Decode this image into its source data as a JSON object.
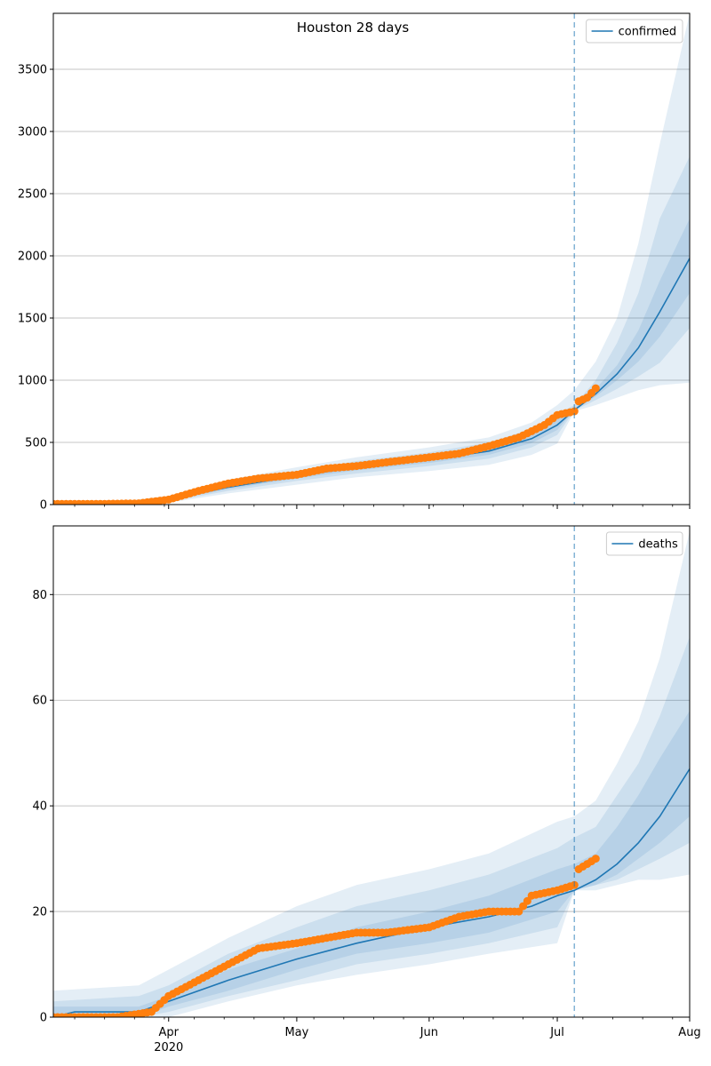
{
  "figure": {
    "title": "Houston 28 days"
  },
  "chart_data": [
    {
      "type": "line",
      "title": "Houston 28 days",
      "xlabel": "",
      "ylabel": "",
      "x_range": [
        "2020-03-05",
        "2020-08-01"
      ],
      "ylim": [
        0,
        3950
      ],
      "yticks": [
        0,
        500,
        1000,
        1500,
        2000,
        2500,
        3000,
        3500
      ],
      "xticks": [
        {
          "date": "2020-04-01",
          "label": "Apr",
          "sublabel": "2020"
        },
        {
          "date": "2020-05-01",
          "label": "May",
          "sublabel": ""
        },
        {
          "date": "2020-06-01",
          "label": "Jun",
          "sublabel": ""
        },
        {
          "date": "2020-07-01",
          "label": "Jul",
          "sublabel": ""
        },
        {
          "date": "2020-08-01",
          "label": "Aug",
          "sublabel": ""
        }
      ],
      "grid": "y",
      "legend": {
        "placement": "top-right",
        "entries": [
          "confirmed"
        ]
      },
      "forecast_start": "2020-07-05",
      "series": [
        {
          "name": "confirmed",
          "kind": "model-median",
          "color": "#1f77b4",
          "x": [
            "2020-03-05",
            "2020-03-20",
            "2020-04-01",
            "2020-04-15",
            "2020-05-01",
            "2020-05-15",
            "2020-06-01",
            "2020-06-15",
            "2020-06-25",
            "2020-07-01",
            "2020-07-05",
            "2020-07-10",
            "2020-07-15",
            "2020-07-20",
            "2020-07-25",
            "2020-08-01"
          ],
          "values": [
            0,
            5,
            40,
            140,
            230,
            300,
            360,
            430,
            530,
            640,
            760,
            890,
            1050,
            1260,
            1550,
            1980
          ]
        },
        {
          "name": "",
          "kind": "observed",
          "color": "#ff7f0e",
          "x": [
            "2020-03-05",
            "2020-03-15",
            "2020-03-25",
            "2020-04-01",
            "2020-04-08",
            "2020-04-15",
            "2020-04-22",
            "2020-05-01",
            "2020-05-08",
            "2020-05-15",
            "2020-05-22",
            "2020-06-01",
            "2020-06-08",
            "2020-06-15",
            "2020-06-22",
            "2020-06-28",
            "2020-07-01",
            "2020-07-05",
            "2020-07-06",
            "2020-07-08",
            "2020-07-10"
          ],
          "values": [
            5,
            5,
            10,
            40,
            110,
            170,
            210,
            240,
            290,
            310,
            340,
            380,
            410,
            470,
            540,
            640,
            720,
            750,
            830,
            860,
            935
          ]
        }
      ],
      "bands": [
        {
          "level": "outer",
          "x": [
            "2020-03-05",
            "2020-03-20",
            "2020-04-01",
            "2020-04-15",
            "2020-05-01",
            "2020-05-15",
            "2020-06-01",
            "2020-06-15",
            "2020-06-25",
            "2020-07-01",
            "2020-07-05",
            "2020-07-10",
            "2020-07-15",
            "2020-07-20",
            "2020-07-25",
            "2020-08-01"
          ],
          "low": [
            0,
            0,
            15,
            90,
            160,
            220,
            270,
            320,
            400,
            490,
            750,
            800,
            860,
            920,
            960,
            980
          ],
          "high": [
            10,
            20,
            70,
            200,
            300,
            380,
            460,
            540,
            660,
            800,
            920,
            1150,
            1500,
            2100,
            2900,
            3950
          ]
        },
        {
          "level": "middle",
          "x": [
            "2020-03-05",
            "2020-03-20",
            "2020-04-01",
            "2020-04-15",
            "2020-05-01",
            "2020-05-15",
            "2020-06-01",
            "2020-06-15",
            "2020-06-25",
            "2020-07-01",
            "2020-07-05",
            "2020-07-10",
            "2020-07-15",
            "2020-07-20",
            "2020-07-25",
            "2020-08-01"
          ],
          "low": [
            0,
            2,
            25,
            110,
            190,
            250,
            310,
            370,
            460,
            560,
            755,
            840,
            930,
            1030,
            1140,
            1420
          ],
          "high": [
            5,
            12,
            55,
            170,
            270,
            350,
            420,
            500,
            610,
            730,
            800,
            1000,
            1300,
            1700,
            2300,
            2800
          ]
        },
        {
          "level": "inner",
          "x": [
            "2020-03-05",
            "2020-03-20",
            "2020-04-01",
            "2020-04-15",
            "2020-05-01",
            "2020-05-15",
            "2020-06-01",
            "2020-06-15",
            "2020-06-25",
            "2020-07-01",
            "2020-07-05",
            "2020-07-10",
            "2020-07-15",
            "2020-07-20",
            "2020-07-25",
            "2020-08-01"
          ],
          "low": [
            0,
            3,
            32,
            125,
            210,
            275,
            335,
            400,
            495,
            600,
            760,
            870,
            1000,
            1150,
            1350,
            1700
          ],
          "high": [
            3,
            8,
            48,
            155,
            250,
            325,
            390,
            465,
            570,
            685,
            770,
            930,
            1120,
            1400,
            1800,
            2300
          ]
        }
      ]
    },
    {
      "type": "line",
      "title": "",
      "xlabel": "",
      "ylabel": "",
      "x_range": [
        "2020-03-05",
        "2020-08-01"
      ],
      "ylim": [
        0,
        93
      ],
      "yticks": [
        0,
        20,
        40,
        60,
        80
      ],
      "xticks": [
        {
          "date": "2020-04-01",
          "label": "Apr",
          "sublabel": "2020"
        },
        {
          "date": "2020-05-01",
          "label": "May",
          "sublabel": ""
        },
        {
          "date": "2020-06-01",
          "label": "Jun",
          "sublabel": ""
        },
        {
          "date": "2020-07-01",
          "label": "Jul",
          "sublabel": ""
        },
        {
          "date": "2020-08-01",
          "label": "Aug",
          "sublabel": ""
        }
      ],
      "grid": "y",
      "legend": {
        "placement": "top-right",
        "entries": [
          "deaths"
        ]
      },
      "forecast_start": "2020-07-05",
      "series": [
        {
          "name": "deaths",
          "kind": "model-median",
          "color": "#1f77b4",
          "x": [
            "2020-03-05",
            "2020-03-10",
            "2020-03-25",
            "2020-04-01",
            "2020-04-15",
            "2020-05-01",
            "2020-05-15",
            "2020-06-01",
            "2020-06-15",
            "2020-06-25",
            "2020-07-01",
            "2020-07-05",
            "2020-07-10",
            "2020-07-15",
            "2020-07-20",
            "2020-07-25",
            "2020-08-01"
          ],
          "values": [
            0,
            1,
            1,
            3,
            7,
            11,
            14,
            17,
            19,
            21,
            23,
            24,
            26,
            29,
            33,
            38,
            47
          ]
        },
        {
          "name": "",
          "kind": "observed",
          "color": "#ff7f0e",
          "x": [
            "2020-03-05",
            "2020-03-20",
            "2020-03-28",
            "2020-04-01",
            "2020-04-08",
            "2020-04-15",
            "2020-04-22",
            "2020-05-01",
            "2020-05-08",
            "2020-05-15",
            "2020-05-22",
            "2020-06-01",
            "2020-06-08",
            "2020-06-15",
            "2020-06-22",
            "2020-06-25",
            "2020-07-01",
            "2020-07-05",
            "2020-07-06",
            "2020-07-08",
            "2020-07-10"
          ],
          "values": [
            0,
            0,
            1,
            4,
            7,
            10,
            13,
            14,
            15,
            16,
            16,
            17,
            19,
            20,
            20,
            23,
            24,
            25,
            28,
            29,
            30
          ]
        }
      ],
      "bands": [
        {
          "level": "outer",
          "x": [
            "2020-03-05",
            "2020-03-25",
            "2020-04-01",
            "2020-04-15",
            "2020-05-01",
            "2020-05-15",
            "2020-06-01",
            "2020-06-15",
            "2020-07-01",
            "2020-07-05",
            "2020-07-10",
            "2020-07-15",
            "2020-07-20",
            "2020-07-25",
            "2020-08-01"
          ],
          "low": [
            0,
            0,
            0,
            3,
            6,
            8,
            10,
            12,
            14,
            24,
            24,
            25,
            26,
            26,
            27
          ],
          "high": [
            5,
            6,
            9,
            15,
            21,
            25,
            28,
            31,
            37,
            38,
            41,
            48,
            56,
            68,
            92
          ]
        },
        {
          "level": "middle",
          "x": [
            "2020-03-05",
            "2020-03-25",
            "2020-04-01",
            "2020-04-15",
            "2020-05-01",
            "2020-05-15",
            "2020-06-01",
            "2020-06-15",
            "2020-07-01",
            "2020-07-05",
            "2020-07-10",
            "2020-07-15",
            "2020-07-20",
            "2020-07-25",
            "2020-08-01"
          ],
          "low": [
            0,
            0,
            1,
            4,
            7,
            10,
            12,
            14,
            17,
            24,
            25,
            26,
            28,
            30,
            33
          ],
          "high": [
            3,
            4,
            6,
            12,
            17,
            21,
            24,
            27,
            32,
            34,
            36,
            42,
            48,
            57,
            72
          ]
        },
        {
          "level": "inner",
          "x": [
            "2020-03-05",
            "2020-03-25",
            "2020-04-01",
            "2020-04-15",
            "2020-05-01",
            "2020-05-15",
            "2020-06-01",
            "2020-06-15",
            "2020-07-01",
            "2020-07-05",
            "2020-07-10",
            "2020-07-15",
            "2020-07-20",
            "2020-07-25",
            "2020-08-01"
          ],
          "low": [
            0,
            0,
            2,
            5,
            9,
            12,
            14,
            16,
            20,
            24,
            25,
            27,
            30,
            33,
            38
          ],
          "high": [
            2,
            2,
            4,
            9,
            13,
            17,
            20,
            23,
            28,
            29,
            31,
            36,
            42,
            49,
            58
          ]
        }
      ]
    }
  ]
}
